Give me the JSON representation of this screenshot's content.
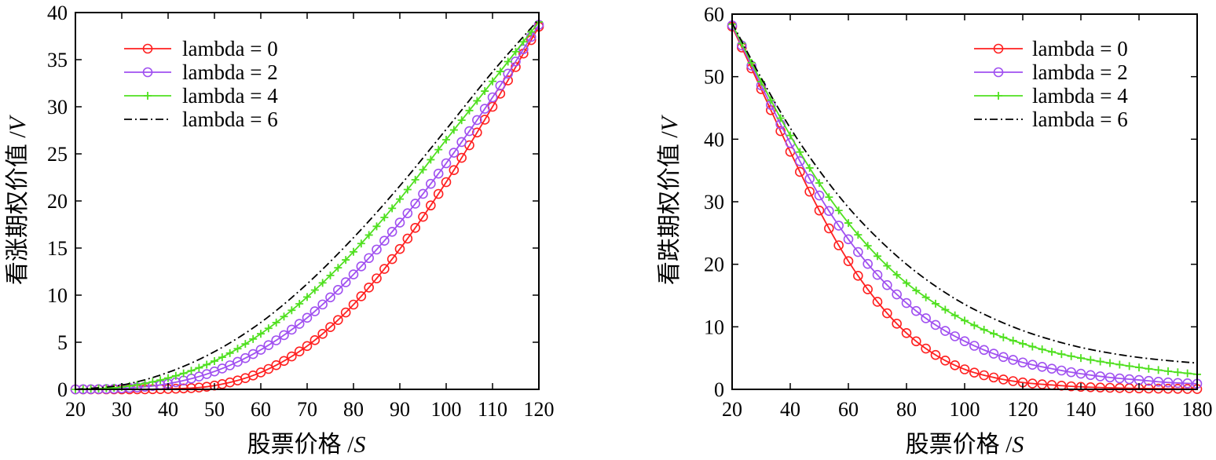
{
  "chart_data": [
    {
      "type": "line",
      "title": "",
      "xlabel": "股票价格/S",
      "xlabel_text": "股票价格",
      "xlabel_var": "S",
      "ylabel": "看涨期权价值/V",
      "ylabel_text": "看涨期权价值",
      "ylabel_var": "V",
      "xlim": [
        20,
        120
      ],
      "ylim": [
        0,
        40
      ],
      "xticks": [
        20,
        30,
        40,
        50,
        60,
        70,
        80,
        90,
        100,
        110,
        120
      ],
      "yticks": [
        0,
        5,
        10,
        15,
        20,
        25,
        30,
        35,
        40
      ],
      "legend_position": "top-left",
      "x": [
        20,
        30,
        40,
        50,
        60,
        70,
        80,
        90,
        100,
        110,
        120
      ],
      "series": [
        {
          "name": "lambda = 0",
          "color": "#ff2020",
          "marker": "circle",
          "line": "solid",
          "values": [
            0.0,
            0.0,
            0.05,
            0.4,
            1.8,
            4.6,
            9.0,
            14.9,
            22.0,
            30.0,
            38.5
          ]
        },
        {
          "name": "lambda = 2",
          "color": "#a050f0",
          "marker": "circle",
          "line": "solid",
          "values": [
            0.0,
            0.1,
            0.6,
            1.9,
            4.2,
            7.6,
            12.2,
            17.7,
            24.0,
            31.0,
            38.7
          ]
        },
        {
          "name": "lambda = 4",
          "color": "#50e020",
          "marker": "plus",
          "line": "solid",
          "values": [
            0.0,
            0.25,
            1.2,
            3.0,
            5.9,
            9.8,
            14.6,
            20.2,
            26.5,
            32.7,
            39.0
          ]
        },
        {
          "name": "lambda = 6",
          "color": "#000000",
          "marker": "none",
          "line": "dashdot",
          "values": [
            0.0,
            0.45,
            1.8,
            4.0,
            7.1,
            11.2,
            16.1,
            21.6,
            27.6,
            33.7,
            39.3
          ]
        }
      ]
    },
    {
      "type": "line",
      "title": "",
      "xlabel": "股票价格/S",
      "xlabel_text": "股票价格",
      "xlabel_var": "S",
      "ylabel": "看跌期权价值/V",
      "ylabel_text": "看跌期权价值",
      "ylabel_var": "V",
      "xlim": [
        20,
        180
      ],
      "ylim": [
        0,
        60
      ],
      "xticks": [
        20,
        40,
        60,
        80,
        100,
        120,
        140,
        160,
        180
      ],
      "yticks": [
        0,
        10,
        20,
        30,
        40,
        50,
        60
      ],
      "legend_position": "top-right",
      "x": [
        20,
        30,
        40,
        50,
        60,
        70,
        80,
        90,
        100,
        110,
        120,
        130,
        140,
        150,
        160,
        170,
        180
      ],
      "series": [
        {
          "name": "lambda = 0",
          "color": "#ff2020",
          "marker": "circle",
          "line": "solid",
          "values": [
            58.0,
            48.0,
            38.0,
            28.6,
            20.5,
            14.0,
            9.0,
            5.5,
            3.2,
            1.9,
            1.1,
            0.7,
            0.4,
            0.25,
            0.15,
            0.1,
            0.05
          ]
        },
        {
          "name": "lambda = 2",
          "color": "#a050f0",
          "marker": "circle",
          "line": "solid",
          "values": [
            58.2,
            48.6,
            39.4,
            31.0,
            24.0,
            18.3,
            13.8,
            10.3,
            7.7,
            5.7,
            4.3,
            3.3,
            2.5,
            1.9,
            1.5,
            1.1,
            0.9
          ]
        },
        {
          "name": "lambda = 4",
          "color": "#50e020",
          "marker": "plus",
          "line": "solid",
          "values": [
            58.4,
            49.2,
            40.6,
            33.0,
            26.6,
            21.3,
            17.0,
            13.7,
            11.0,
            8.9,
            7.3,
            6.0,
            5.0,
            4.2,
            3.5,
            2.9,
            2.4
          ]
        },
        {
          "name": "lambda = 6",
          "color": "#000000",
          "marker": "none",
          "line": "dashdot",
          "values": [
            58.6,
            49.8,
            41.8,
            35.0,
            29.1,
            24.2,
            20.0,
            16.5,
            13.6,
            11.3,
            9.4,
            7.9,
            6.7,
            5.8,
            5.1,
            4.6,
            4.2
          ]
        }
      ]
    }
  ]
}
